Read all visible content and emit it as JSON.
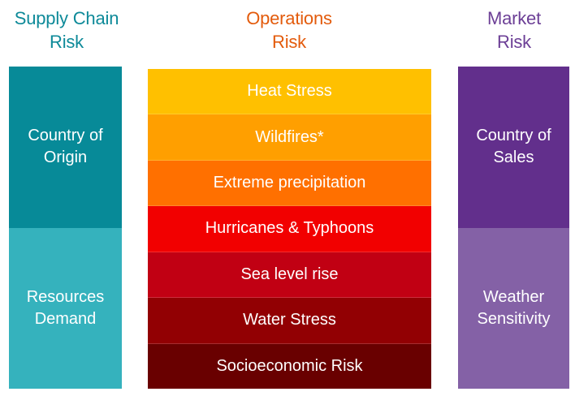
{
  "colors": {
    "supply_title": "#0e8a99",
    "ops_title": "#e35b0c",
    "market_title": "#6c3f96"
  },
  "supply_chain": {
    "title_lines": [
      "Supply Chain",
      "Risk"
    ],
    "blocks": [
      {
        "lines": [
          "Country of",
          "Origin"
        ],
        "color": "#078a98"
      },
      {
        "lines": [
          "Resources",
          "Demand"
        ],
        "color": "#35b2bd"
      }
    ]
  },
  "operations": {
    "title_lines": [
      "Operations",
      "Risk"
    ],
    "blocks": [
      {
        "label": "Heat Stress",
        "color": "#ffc000"
      },
      {
        "label": "Wildfires*",
        "color": "#ff9f00"
      },
      {
        "label": "Extreme precipitation",
        "color": "#ff7000"
      },
      {
        "label": "Hurricanes & Typhoons",
        "color": "#f20000"
      },
      {
        "label": "Sea level rise",
        "color": "#c10013"
      },
      {
        "label": "Water Stress",
        "color": "#920003"
      },
      {
        "label": "Socioeconomic Risk",
        "color": "#690000"
      }
    ]
  },
  "market": {
    "title_lines": [
      "Market",
      "Risk"
    ],
    "blocks": [
      {
        "lines": [
          "Country of",
          "Sales"
        ],
        "color": "#622f8c"
      },
      {
        "lines": [
          "Weather",
          "Sensitivity"
        ],
        "color": "#8461a6"
      }
    ]
  }
}
